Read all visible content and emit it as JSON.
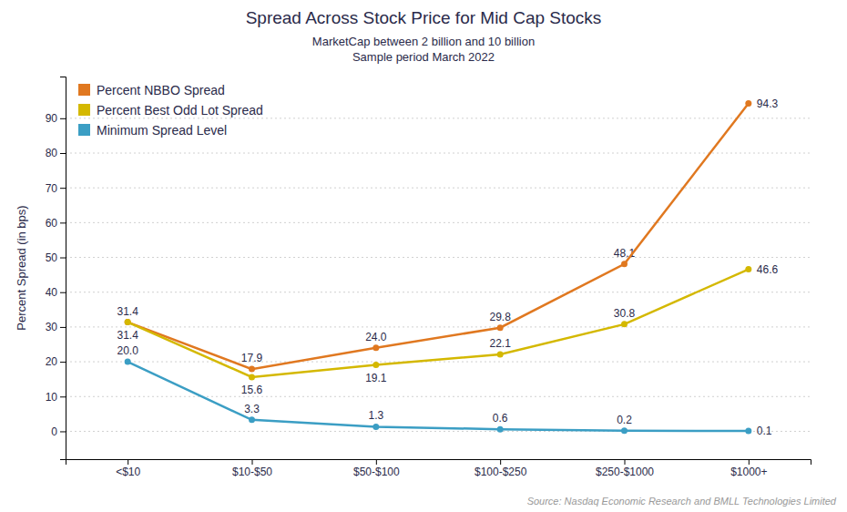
{
  "chart_data": {
    "type": "line",
    "title": "Spread Across Stock Price for Mid Cap Stocks",
    "subtitle": [
      "MarketCap between 2 billion and 10 billion",
      "Sample period March 2022"
    ],
    "source": "Source: Nasdaq Economic Research and BMLL Technologies Limited",
    "ylabel": "Percent Spread (in bps)",
    "categories": [
      "<$10",
      "$10-$50",
      "$50-$100",
      "$100-$250",
      "$250-$1000",
      "$1000+"
    ],
    "series": [
      {
        "name": "Percent NBBO Spread",
        "color": "#E07820",
        "values": [
          31.4,
          17.9,
          24.0,
          29.8,
          48.1,
          94.3
        ],
        "value_labels": [
          "31.4",
          "17.9",
          "24.0",
          "29.8",
          "48.1",
          "94.3"
        ]
      },
      {
        "name": "Percent Best Odd Lot Spread",
        "color": "#D4B800",
        "values": [
          31.4,
          15.6,
          19.1,
          22.1,
          30.8,
          46.6
        ]
      },
      {
        "name": "Minimum Spread Level",
        "color": "#3B9EC4",
        "values": [
          20.0,
          3.3,
          1.3,
          0.6,
          0.2,
          0.1
        ],
        "value_labels": [
          "20.0",
          "3.3",
          "1.3",
          "0.6",
          "0.2",
          "0.1"
        ]
      }
    ],
    "ylim": [
      -8,
      102
    ],
    "yticks": [
      0,
      10,
      20,
      30,
      40,
      50,
      60,
      70,
      80,
      90
    ],
    "grid": true,
    "legend": "upper left",
    "marker": "circle",
    "data_labels": true
  }
}
